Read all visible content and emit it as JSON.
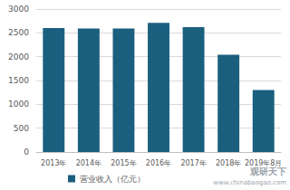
{
  "chart_data": {
    "type": "bar",
    "categories": [
      "2013年",
      "2014年",
      "2015年",
      "2016年",
      "2017年",
      "2018年",
      "2019年8月"
    ],
    "series": [
      {
        "name": "营业收入（亿元）",
        "color": "#1b5f7e",
        "values": [
          2600,
          2590,
          2590,
          2710,
          2620,
          2040,
          1300
        ]
      }
    ],
    "ylim": [
      0,
      3000
    ],
    "yticks": [
      0,
      500,
      1000,
      1500,
      2000,
      2500,
      3000
    ],
    "grid": true,
    "legend": "bottom",
    "annotations": [
      "观研天下",
      "www.chinabaogao.com"
    ]
  }
}
